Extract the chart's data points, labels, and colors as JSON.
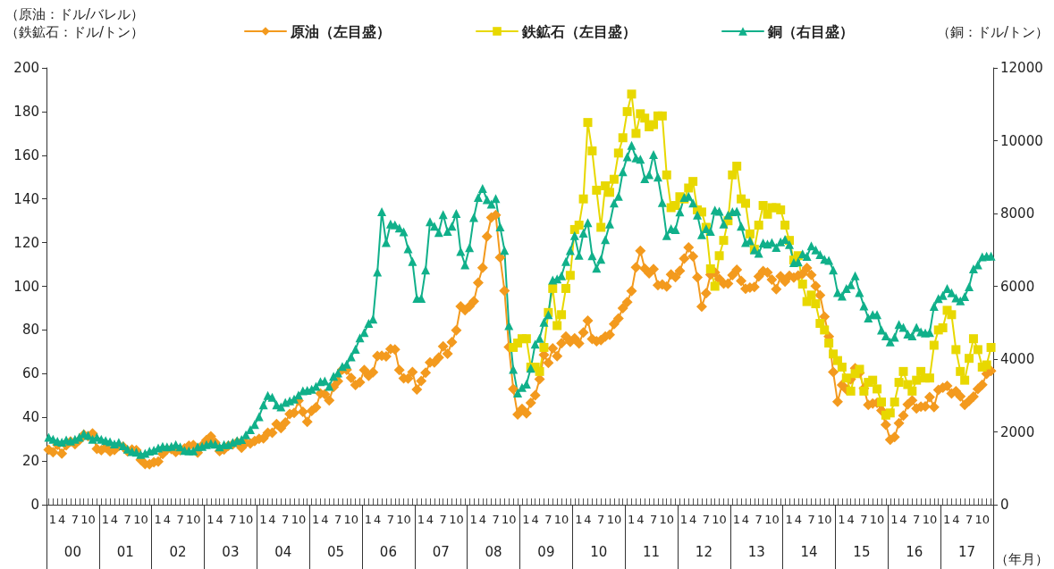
{
  "chart_data": {
    "type": "line",
    "ylabel": "（原油：ドル/バレル）（鉄鉱石：ドル/トン）",
    "y2label": "（銅：ドル/トン）",
    "xlabel": "（年月）",
    "categories": [
      "1",
      null,
      null,
      "4",
      null,
      null,
      "7",
      null,
      null,
      "10",
      null,
      null,
      "1",
      null,
      null,
      "4",
      null,
      null,
      "7",
      null,
      null,
      "10",
      null,
      null,
      "1",
      null,
      null,
      "4",
      null,
      null,
      "7",
      null,
      null,
      "10",
      null,
      null,
      "1",
      null,
      null,
      "4",
      null,
      null,
      "7",
      null,
      null,
      "10",
      null,
      null,
      "1",
      null,
      null,
      "4",
      null,
      null,
      "7",
      null,
      null,
      "10",
      null,
      null,
      "1",
      null,
      null,
      "4",
      null,
      null,
      "7",
      null,
      null,
      "10",
      null,
      null,
      "1",
      null,
      null,
      "4",
      null,
      null,
      "7",
      null,
      null,
      "10",
      null,
      null,
      "1",
      null,
      null,
      "4",
      null,
      null,
      "7",
      null,
      null,
      "10",
      null,
      null,
      "1",
      null,
      null,
      "4",
      null,
      null,
      "7",
      null,
      null,
      "10",
      null,
      null,
      "1",
      null,
      null,
      "4",
      null,
      null,
      "7",
      null,
      null,
      "10",
      null,
      null,
      "1",
      null,
      null,
      "4",
      null,
      null,
      "7",
      null,
      null,
      "10",
      null,
      null,
      "1",
      null,
      null,
      "4",
      null,
      null,
      "7",
      null,
      null,
      "10",
      null,
      null,
      "1",
      null,
      null,
      "4",
      null,
      null,
      "7",
      null,
      null,
      "10",
      null,
      null,
      "1",
      null,
      null,
      "4",
      null,
      null,
      "7",
      null,
      null,
      "10",
      null,
      null,
      "1",
      null,
      null,
      "4",
      null,
      null,
      "7",
      null,
      null,
      "10",
      null,
      null,
      "1",
      null,
      null,
      "4",
      null,
      null,
      "7",
      null,
      null,
      "10",
      null,
      null,
      "1",
      null,
      null,
      "4",
      null,
      null,
      "7",
      null,
      null,
      "10",
      null,
      null,
      "1",
      null,
      null,
      "4",
      null,
      null,
      "7",
      null,
      null,
      "10",
      null,
      null
    ],
    "annotations": [
      "00",
      "01",
      "02",
      "03",
      "04",
      "05",
      "06",
      "07",
      "08",
      "09",
      "10",
      "11",
      "12",
      "13",
      "14",
      "15",
      "16",
      "17"
    ],
    "series": [
      {
        "name": "原油（左目盛）",
        "color": "#f39a1e",
        "marker": "diamond",
        "values": [
          25.2,
          24.0,
          27.4,
          23.4,
          27.2,
          28.9,
          27.7,
          29.6,
          32.1,
          31.4,
          32.6,
          25.6,
          25.0,
          26.2,
          24.4,
          25.1,
          26.9,
          26.6,
          24.4,
          25.3,
          25.0,
          20.6,
          18.6,
          18.5,
          19.4,
          19.7,
          23.2,
          25.3,
          25.5,
          24.1,
          25.0,
          25.8,
          27.0,
          27.3,
          23.8,
          27.1,
          29.5,
          31.3,
          28.4,
          24.5,
          25.3,
          27.0,
          27.6,
          28.6,
          26.1,
          28.3,
          28.0,
          29.1,
          30.2,
          30.4,
          32.9,
          32.9,
          36.9,
          35.1,
          37.6,
          41.5,
          42.0,
          47.6,
          42.5,
          37.9,
          42.9,
          44.6,
          50.9,
          50.6,
          47.8,
          53.9,
          56.5,
          61.9,
          61.8,
          58.1,
          54.8,
          56.0,
          61.7,
          59.0,
          60.6,
          68.1,
          68.2,
          67.9,
          71.3,
          71.1,
          61.7,
          57.9,
          57.8,
          60.7,
          52.8,
          56.6,
          60.4,
          65.1,
          65.1,
          67.4,
          72.5,
          69.1,
          74.4,
          79.9,
          90.8,
          89.1,
          90.8,
          93.1,
          101.6,
          108.5,
          122.8,
          131.5,
          132.6,
          113.2,
          98.0,
          72.2,
          53.0,
          41.3,
          43.9,
          41.8,
          46.6,
          50.1,
          57.5,
          68.6,
          64.9,
          71.6,
          68.0,
          73.9,
          77.0,
          74.5,
          76.2,
          73.8,
          78.8,
          84.3,
          75.9,
          74.8,
          75.4,
          77.0,
          77.8,
          82.7,
          85.3,
          90.0,
          92.7,
          97.9,
          108.7,
          116.3,
          108.1,
          105.9,
          107.9,
          100.5,
          100.8,
          99.9,
          105.4,
          104.2,
          107.1,
          112.7,
          117.8,
          113.7,
          104.1,
          90.7,
          96.8,
          105.3,
          106.3,
          103.4,
          101.2,
          101.2,
          105.1,
          107.6,
          102.5,
          98.9,
          99.4,
          99.7,
          104.5,
          107.0,
          106.3,
          103.1,
          98.7,
          104.6,
          102.1,
          104.8,
          104.0,
          104.9,
          105.7,
          108.4,
          105.2,
          100.1,
          95.9,
          86.1,
          77.0,
          60.7,
          47.1,
          54.8,
          52.8,
          57.5,
          62.5,
          60.3,
          53.3,
          45.7,
          46.3,
          46.6,
          43.1,
          36.6,
          29.8,
          31.0,
          37.3,
          40.8,
          45.9,
          47.7,
          44.1,
          44.9,
          45.0,
          49.3,
          44.7,
          52.6,
          53.6,
          54.4,
          50.9,
          51.9,
          49.6,
          45.7,
          47.5,
          49.5,
          53.0,
          54.9,
          59.9,
          61.2
        ]
      },
      {
        "name": "鉄鉱石（左目盛）",
        "color": "#e8d800",
        "marker": "square",
        "values": [
          null,
          null,
          null,
          null,
          null,
          null,
          null,
          null,
          null,
          null,
          null,
          null,
          null,
          null,
          null,
          null,
          null,
          null,
          null,
          null,
          null,
          null,
          null,
          null,
          null,
          null,
          null,
          null,
          null,
          null,
          null,
          null,
          null,
          null,
          null,
          null,
          null,
          null,
          null,
          null,
          null,
          null,
          null,
          null,
          null,
          null,
          null,
          null,
          null,
          null,
          null,
          null,
          null,
          null,
          null,
          null,
          null,
          null,
          null,
          null,
          null,
          null,
          null,
          null,
          null,
          null,
          null,
          null,
          null,
          null,
          null,
          null,
          null,
          null,
          null,
          null,
          null,
          null,
          null,
          null,
          null,
          null,
          null,
          null,
          null,
          null,
          null,
          null,
          null,
          null,
          null,
          null,
          null,
          null,
          null,
          null,
          null,
          null,
          null,
          null,
          null,
          null,
          null,
          null,
          null,
          null,
          72,
          74,
          76,
          76,
          63,
          63,
          61,
          72,
          88,
          99,
          82,
          87,
          99,
          105,
          126,
          128,
          140,
          175,
          162,
          144,
          127,
          146,
          143,
          149,
          161,
          168,
          180,
          188,
          170,
          179,
          177,
          173,
          174,
          178,
          178,
          151,
          136,
          137,
          141,
          140,
          145,
          148,
          135,
          134,
          127,
          108,
          100,
          114,
          121,
          130,
          151,
          155,
          140,
          138,
          124,
          117,
          128,
          137,
          133,
          136,
          136,
          135,
          128,
          121,
          112,
          114,
          101,
          93,
          96,
          92,
          83,
          80,
          74,
          69,
          66,
          63,
          58,
          52,
          60,
          62,
          52,
          56,
          57,
          53,
          47,
          41,
          42,
          47,
          56,
          61,
          55,
          52,
          57,
          61,
          58,
          58,
          73,
          80,
          81,
          89,
          87,
          71,
          61,
          57,
          67,
          76,
          71,
          63,
          64,
          72
        ]
      },
      {
        "name": "銅（右目盛）",
        "color": "#10b08a",
        "marker": "triangle",
        "axis": "y2",
        "values": [
          1850,
          1800,
          1740,
          1720,
          1780,
          1750,
          1800,
          1850,
          1950,
          1900,
          1800,
          1850,
          1800,
          1760,
          1730,
          1670,
          1710,
          1620,
          1530,
          1460,
          1440,
          1380,
          1410,
          1470,
          1500,
          1560,
          1600,
          1590,
          1600,
          1650,
          1590,
          1490,
          1480,
          1480,
          1590,
          1600,
          1650,
          1680,
          1660,
          1590,
          1650,
          1650,
          1710,
          1760,
          1790,
          1920,
          2060,
          2200,
          2420,
          2740,
          3000,
          2950,
          2740,
          2690,
          2810,
          2850,
          2900,
          3010,
          3130,
          3140,
          3170,
          3250,
          3380,
          3400,
          3250,
          3530,
          3620,
          3800,
          3860,
          4060,
          4270,
          4580,
          4730,
          4980,
          5100,
          6390,
          8050,
          7200,
          7710,
          7690,
          7600,
          7500,
          7030,
          6680,
          5670,
          5670,
          6450,
          7770,
          7650,
          7480,
          7970,
          7510,
          7650,
          8000,
          6960,
          6590,
          7060,
          7890,
          8440,
          8690,
          8380,
          8260,
          8410,
          7630,
          6990,
          4920,
          3720,
          3070,
          3220,
          3310,
          3750,
          4410,
          4570,
          5010,
          5220,
          6170,
          6200,
          6290,
          6680,
          6980,
          7390,
          6850,
          7460,
          7750,
          6840,
          6500,
          6740,
          7280,
          7710,
          8290,
          8470,
          9150,
          9560,
          9870,
          9530,
          9490,
          8960,
          9070,
          9620,
          9000,
          8300,
          7390,
          7580,
          7560,
          8040,
          8440,
          8470,
          8290,
          7960,
          7420,
          7580,
          7510,
          8090,
          8060,
          7710,
          7960,
          8050,
          8060,
          7650,
          7200,
          7250,
          7000,
          6910,
          7190,
          7160,
          7200,
          7070,
          7220,
          7290,
          7150,
          6650,
          6670,
          6890,
          6820,
          7110,
          7000,
          6870,
          6740,
          6710,
          6450,
          5830,
          5730,
          5940,
          6040,
          6290,
          5830,
          5460,
          5130,
          5220,
          5220,
          4800,
          4640,
          4470,
          4600,
          4950,
          4870,
          4690,
          4640,
          4870,
          4750,
          4720,
          4730,
          5450,
          5660,
          5750,
          5940,
          5820,
          5680,
          5600,
          5720,
          5990,
          6480,
          6590,
          6810,
          6830,
          6830
        ]
      }
    ],
    "ylim": [
      0,
      200
    ],
    "yticks": [
      0,
      20,
      40,
      60,
      80,
      100,
      120,
      140,
      160,
      180,
      200
    ],
    "y2lim": [
      0,
      12000
    ],
    "y2ticks": [
      0,
      2000,
      4000,
      6000,
      8000,
      10000,
      12000
    ],
    "grid": false,
    "legend": "top",
    "line_style": "solid"
  }
}
